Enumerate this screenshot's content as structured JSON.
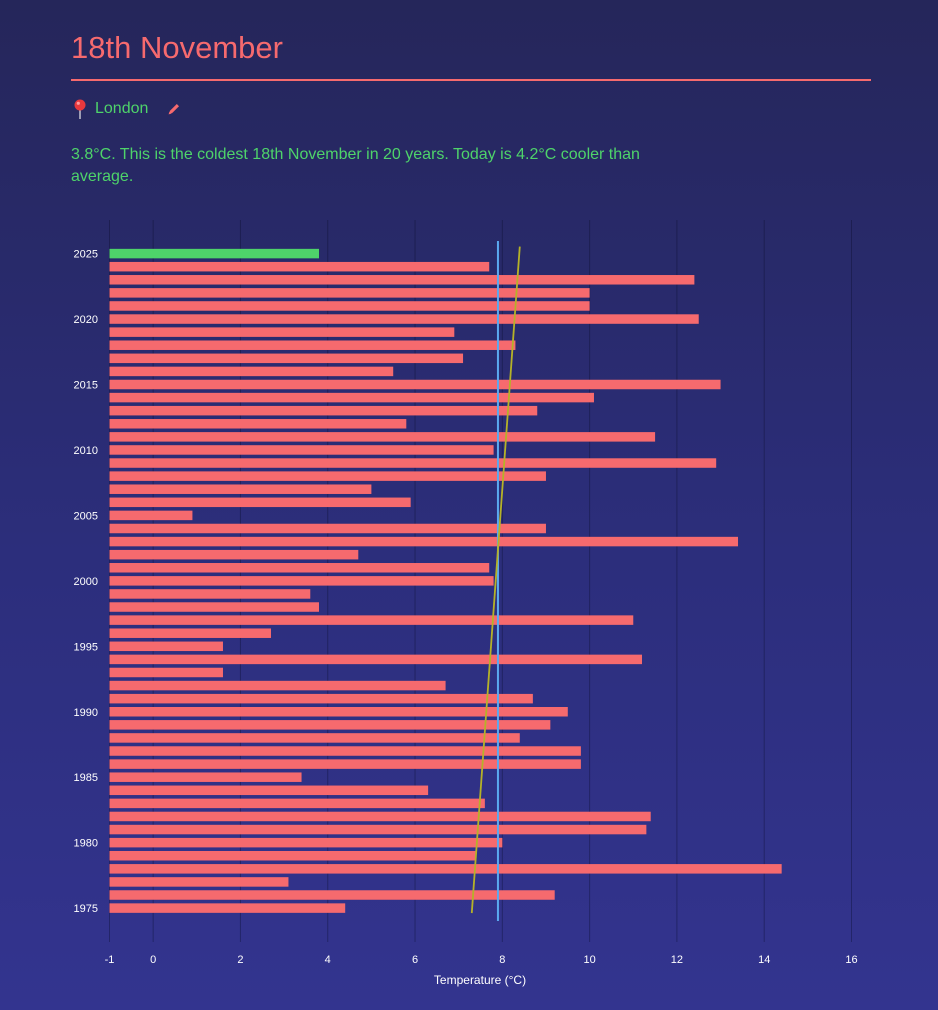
{
  "header": {
    "title": "18th November",
    "location": "London",
    "summary": "3.8°C. This is the coldest 18th November in 20 years. Today is 4.2°C cooler than average."
  },
  "icons": {
    "location": "map-pin-icon",
    "edit": "pencil-icon"
  },
  "colors": {
    "accent": "#f66a6e",
    "highlight": "#4ed36a",
    "average_line": "#5aa9f0",
    "trend_line": "#b5b228",
    "text": "#ffffff"
  },
  "chart_data": {
    "type": "bar",
    "orientation": "horizontal",
    "xlabel": "Temperature (°C)",
    "ylabel": "",
    "xlim": [
      -1,
      16
    ],
    "xticks": [
      -1,
      0,
      2,
      4,
      6,
      8,
      10,
      12,
      14,
      16
    ],
    "yticks": [
      2025,
      2020,
      2015,
      2010,
      2005,
      2000,
      1995,
      1990,
      1985,
      1980,
      1975
    ],
    "grid": true,
    "years": [
      2025,
      2024,
      2023,
      2022,
      2021,
      2020,
      2019,
      2018,
      2017,
      2016,
      2015,
      2014,
      2013,
      2012,
      2011,
      2010,
      2009,
      2008,
      2007,
      2006,
      2005,
      2004,
      2003,
      2002,
      2001,
      2000,
      1999,
      1998,
      1997,
      1996,
      1995,
      1994,
      1993,
      1992,
      1991,
      1990,
      1989,
      1988,
      1987,
      1986,
      1985,
      1984,
      1983,
      1982,
      1981,
      1980,
      1979,
      1978,
      1977,
      1976,
      1975
    ],
    "values": [
      3.8,
      7.7,
      12.4,
      10.0,
      10.0,
      12.5,
      6.9,
      8.3,
      7.1,
      5.5,
      13.0,
      10.1,
      8.8,
      5.8,
      11.5,
      7.8,
      12.9,
      9.0,
      5.0,
      5.9,
      0.9,
      9.0,
      13.4,
      4.7,
      7.7,
      7.8,
      3.6,
      3.8,
      11.0,
      2.7,
      1.6,
      11.2,
      1.6,
      6.7,
      8.7,
      9.5,
      9.1,
      8.4,
      9.8,
      9.8,
      3.4,
      6.3,
      7.6,
      11.4,
      11.3,
      8.0,
      7.4,
      14.4,
      3.1,
      9.2,
      4.4
    ],
    "highlight_year": 2025,
    "average": 7.9,
    "trend": {
      "start_year": 1975,
      "start_value": 7.3,
      "end_year": 2025,
      "end_value": 8.4
    }
  }
}
